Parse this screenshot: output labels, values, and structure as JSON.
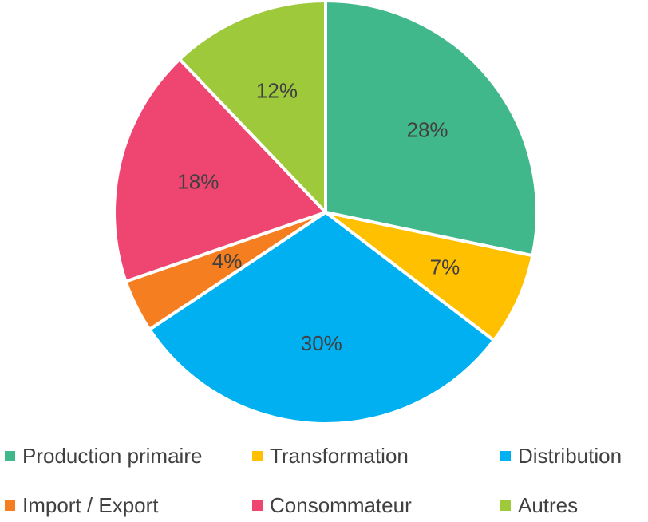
{
  "chart_data": {
    "type": "pie",
    "title": "",
    "start_angle_deg": 0,
    "direction": "clockwise",
    "legend_position": "bottom",
    "slices": [
      {
        "name": "Production primaire",
        "value": 28,
        "label": "28%",
        "color": "#41B88C"
      },
      {
        "name": "Transformation",
        "value": 7,
        "label": "7%",
        "color": "#FFC000"
      },
      {
        "name": "Distribution",
        "value": 30,
        "label": "30%",
        "color": "#00B0F0"
      },
      {
        "name": "Import / Export",
        "value": 4,
        "label": "4%",
        "color": "#F47E20"
      },
      {
        "name": "Consommateur",
        "value": 18,
        "label": "18%",
        "color": "#EF4571"
      },
      {
        "name": "Autres",
        "value": 12,
        "label": "12%",
        "color": "#9DC93B"
      }
    ]
  }
}
